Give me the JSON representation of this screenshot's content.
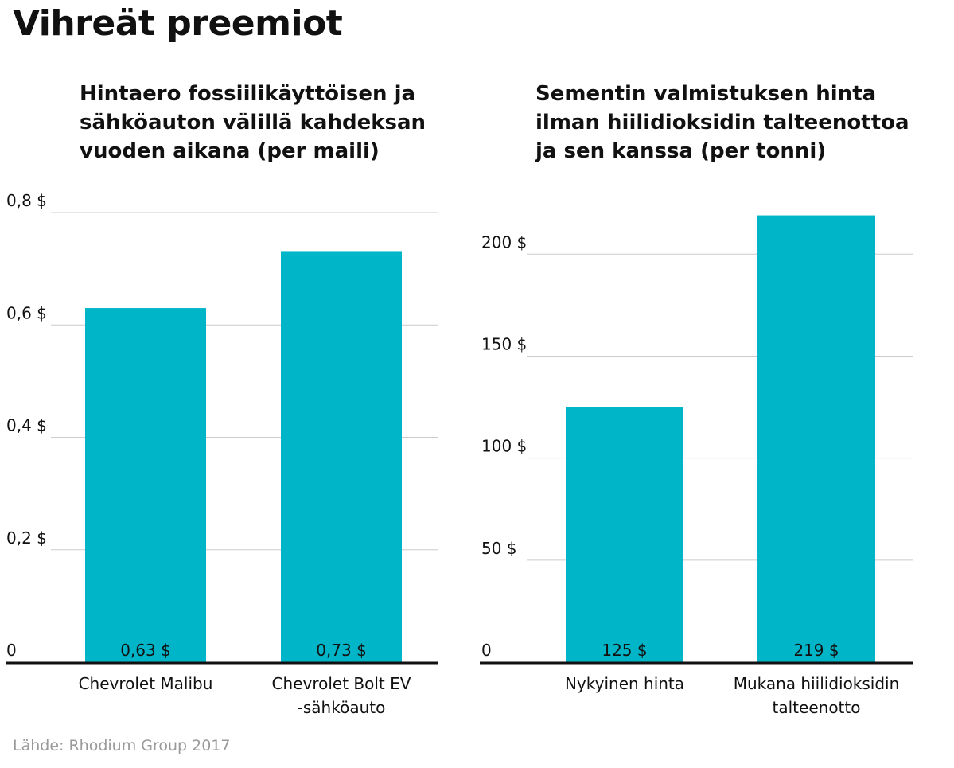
{
  "title": "Vihreät preemiot",
  "source": "Lähde: Rhodium Group 2017",
  "colors": {
    "bar": "#00b5c8",
    "grid": "#cccccc",
    "axis": "#111111"
  },
  "chart_data": [
    {
      "type": "bar",
      "title": "Hintaero fossiilikäyttöisen ja sähköauton välillä kahdeksan vuoden aikana (per maili)",
      "categories": [
        "Chevrolet Malibu",
        "Chevrolet Bolt EV -sähköauto"
      ],
      "category_lines": [
        [
          "Chevrolet Malibu"
        ],
        [
          "Chevrolet Bolt EV",
          "-sähköauto"
        ]
      ],
      "values": [
        0.63,
        0.73
      ],
      "value_labels": [
        "0,63 $",
        "0,73 $"
      ],
      "ylim": [
        0,
        0.8
      ],
      "yticks": [
        0,
        0.2,
        0.4,
        0.6,
        0.8
      ],
      "ytick_labels": [
        "0",
        "0,2 $",
        "0,4 $",
        "0,6 $",
        "0,8 $"
      ],
      "grid": true
    },
    {
      "type": "bar",
      "title": "Sementin valmistuksen hinta ilman hiilidioksidin talteenottoa ja sen kanssa (per tonni)",
      "categories": [
        "Nykyinen hinta",
        "Mukana hiilidioksidin talteenotto"
      ],
      "category_lines": [
        [
          "Nykyinen hinta"
        ],
        [
          "Mukana hiilidioksidin",
          "talteenotto"
        ]
      ],
      "values": [
        125,
        219
      ],
      "value_labels": [
        "125 $",
        "219 $"
      ],
      "ylim": [
        0,
        220
      ],
      "yticks": [
        0,
        50,
        100,
        150,
        200
      ],
      "ytick_labels": [
        "0",
        "50 $",
        "100 $",
        "150 $",
        "200 $"
      ],
      "grid": true
    }
  ]
}
